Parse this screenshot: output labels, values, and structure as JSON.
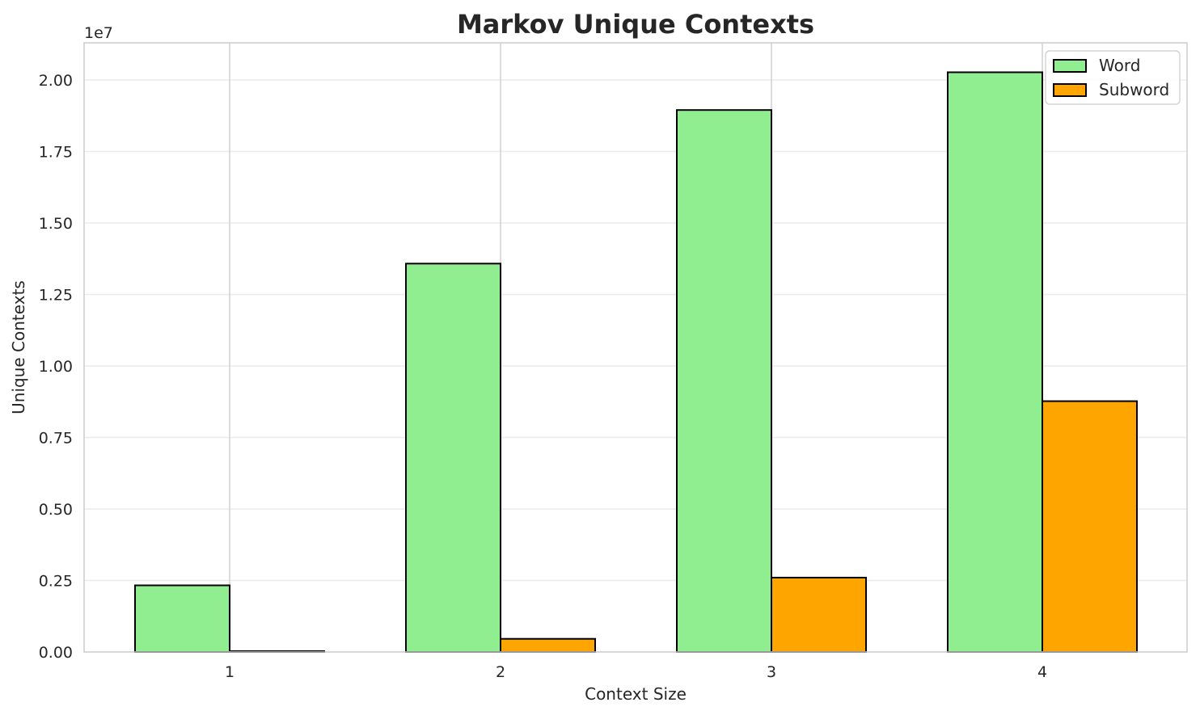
{
  "chart_data": {
    "type": "bar",
    "title": "Markov Unique Contexts",
    "xlabel": "Context Size",
    "ylabel": "Unique Contexts",
    "y_offset_label": "1e7",
    "y_scale": 10000000,
    "categories": [
      "1",
      "2",
      "3",
      "4"
    ],
    "series": [
      {
        "name": "Word",
        "color": "#90ee90",
        "values": [
          2330000,
          13580000,
          18950000,
          20270000
        ]
      },
      {
        "name": "Subword",
        "color": "#ffa500",
        "values": [
          30000,
          460000,
          2600000,
          8770000
        ]
      }
    ],
    "ylim": [
      0,
      21300000
    ],
    "yticks": [
      0,
      2500000,
      5000000,
      7500000,
      10000000,
      12500000,
      15000000,
      17500000,
      20000000
    ],
    "ytick_labels": [
      "0.00",
      "0.25",
      "0.50",
      "0.75",
      "1.00",
      "1.25",
      "1.50",
      "1.75",
      "2.00"
    ],
    "grid": true,
    "legend_position": "top-right"
  }
}
